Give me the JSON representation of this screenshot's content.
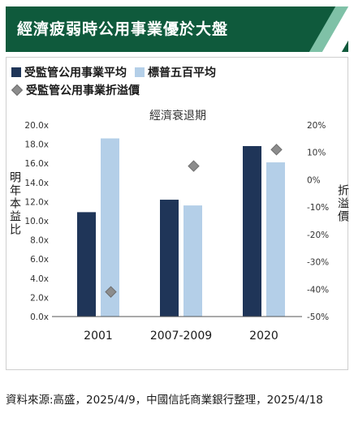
{
  "header": {
    "title": "經濟疲弱時公用事業優於大盤"
  },
  "legend": {
    "items": [
      {
        "label": "受監管公用事業平均",
        "color": "#1f3558"
      },
      {
        "label": "標普五百平均",
        "color": "#b4cfe8"
      },
      {
        "label": "受監管公用事業折溢價",
        "color": "#8c8c8c"
      }
    ]
  },
  "chart_data": {
    "type": "bar",
    "title": "經濟衰退期",
    "categories": [
      "2001",
      "2007-2009",
      "2020"
    ],
    "series": [
      {
        "name": "受監管公用事業平均",
        "type": "bar",
        "axis": "left",
        "color": "#1f3558",
        "values": [
          10.9,
          12.2,
          17.8
        ]
      },
      {
        "name": "標普五百平均",
        "type": "bar",
        "axis": "left",
        "color": "#b4cfe8",
        "values": [
          18.6,
          11.6,
          16.1
        ]
      },
      {
        "name": "受監管公用事業折溢價",
        "type": "marker",
        "axis": "right",
        "color": "#8c8c8c",
        "values": [
          -41,
          5,
          11
        ]
      }
    ],
    "ylabel": "明年本益比",
    "y2label": "折溢價",
    "ylim": [
      0,
      20
    ],
    "y2lim": [
      -50,
      20
    ],
    "yticks": [
      "0.0x",
      "2.0x",
      "4.0x",
      "6.0x",
      "8.0x",
      "10.0x",
      "12.0x",
      "14.0x",
      "16.0x",
      "18.0x",
      "20.0x"
    ],
    "y2ticks": [
      "-50%",
      "-40%",
      "-30%",
      "-20%",
      "-10%",
      "0%",
      "10%",
      "20%"
    ],
    "legend_position": "top-left",
    "grid": false
  },
  "footer": {
    "source": "資料來源:高盛，2025/4/9，中國信託商業銀行整理，2025/4/18"
  }
}
